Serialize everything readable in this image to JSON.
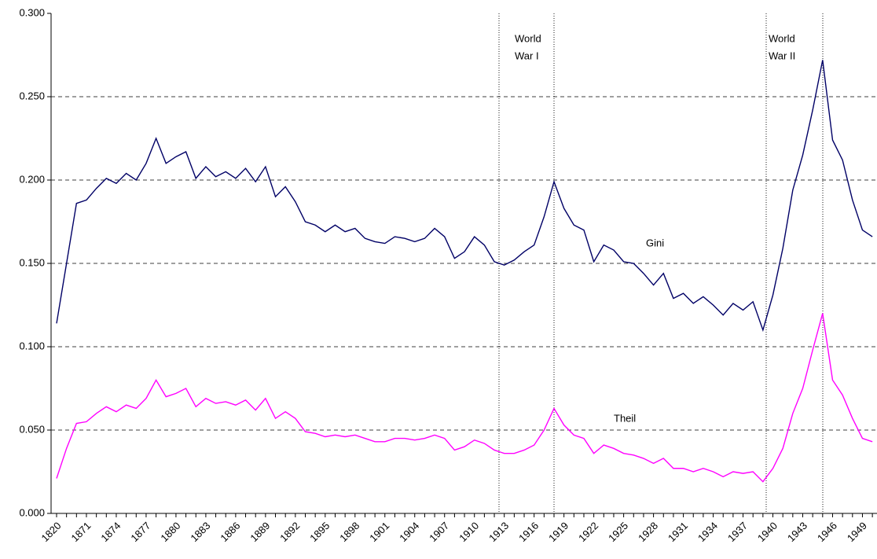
{
  "chart_data": {
    "type": "line",
    "categories": [
      "1820",
      null,
      null,
      "1871",
      null,
      null,
      "1874",
      null,
      null,
      "1877",
      null,
      null,
      "1880",
      null,
      null,
      "1883",
      null,
      null,
      "1886",
      null,
      null,
      "1889",
      null,
      null,
      "1892",
      null,
      null,
      "1895",
      null,
      null,
      "1898",
      null,
      null,
      "1901",
      null,
      null,
      "1904",
      null,
      null,
      "1907",
      null,
      null,
      "1910",
      null,
      null,
      "1913",
      null,
      null,
      "1916",
      null,
      null,
      "1919",
      null,
      null,
      "1922",
      null,
      null,
      "1925",
      null,
      null,
      "1928",
      null,
      null,
      "1931",
      null,
      null,
      "1934",
      null,
      null,
      "1937",
      null,
      null,
      "1940",
      null,
      null,
      "1943",
      null,
      null,
      "1946",
      null,
      null,
      "1949",
      null
    ],
    "series": [
      {
        "name": "Gini",
        "color": "#000066",
        "values": [
          0.114,
          0.15,
          0.186,
          0.188,
          0.195,
          0.201,
          0.198,
          0.204,
          0.2,
          0.21,
          0.225,
          0.21,
          0.214,
          0.217,
          0.201,
          0.208,
          0.202,
          0.205,
          0.201,
          0.207,
          0.199,
          0.208,
          0.19,
          0.196,
          0.187,
          0.175,
          0.173,
          0.169,
          0.173,
          0.169,
          0.171,
          0.165,
          0.163,
          0.162,
          0.166,
          0.165,
          0.163,
          0.165,
          0.171,
          0.166,
          0.153,
          0.157,
          0.166,
          0.161,
          0.151,
          0.149,
          0.152,
          0.157,
          0.161,
          0.178,
          0.199,
          0.183,
          0.173,
          0.17,
          0.151,
          0.161,
          0.158,
          0.151,
          0.15,
          0.144,
          0.137,
          0.144,
          0.129,
          0.132,
          0.126,
          0.13,
          0.125,
          0.119,
          0.126,
          0.122,
          0.127,
          0.11,
          0.131,
          0.159,
          0.194,
          0.215,
          0.242,
          0.272,
          0.224,
          0.212,
          0.188,
          0.17,
          0.166
        ]
      },
      {
        "name": "Theil",
        "color": "#ff00ff",
        "values": [
          0.021,
          0.039,
          0.054,
          0.055,
          0.06,
          0.064,
          0.061,
          0.065,
          0.063,
          0.069,
          0.08,
          0.07,
          0.072,
          0.075,
          0.064,
          0.069,
          0.066,
          0.067,
          0.065,
          0.068,
          0.062,
          0.069,
          0.057,
          0.061,
          0.057,
          0.049,
          0.048,
          0.046,
          0.047,
          0.046,
          0.047,
          0.045,
          0.043,
          0.043,
          0.045,
          0.045,
          0.044,
          0.045,
          0.047,
          0.045,
          0.038,
          0.04,
          0.044,
          0.042,
          0.038,
          0.036,
          0.036,
          0.038,
          0.041,
          0.05,
          0.063,
          0.053,
          0.047,
          0.045,
          0.036,
          0.041,
          0.039,
          0.036,
          0.035,
          0.033,
          0.03,
          0.033,
          0.027,
          0.027,
          0.025,
          0.027,
          0.025,
          0.022,
          0.025,
          0.024,
          0.025,
          0.019,
          0.027,
          0.039,
          0.06,
          0.075,
          0.098,
          0.12,
          0.08,
          0.071,
          0.057,
          0.045,
          0.043
        ]
      }
    ],
    "annotations": [
      [
        "World",
        "War I"
      ],
      [
        "World",
        "War II"
      ]
    ],
    "ylim": [
      0,
      0.3
    ],
    "yticks": [
      {
        "value": 0,
        "label": "0.000"
      },
      {
        "value": 0.05,
        "label": "0.050"
      },
      {
        "value": 0.1,
        "label": "0.100"
      },
      {
        "value": 0.15,
        "label": "0.150"
      },
      {
        "value": 0.2,
        "label": "0.200"
      },
      {
        "value": 0.25,
        "label": "0.250"
      },
      {
        "value": 0.3,
        "label": "0.300"
      }
    ],
    "grid": true
  }
}
